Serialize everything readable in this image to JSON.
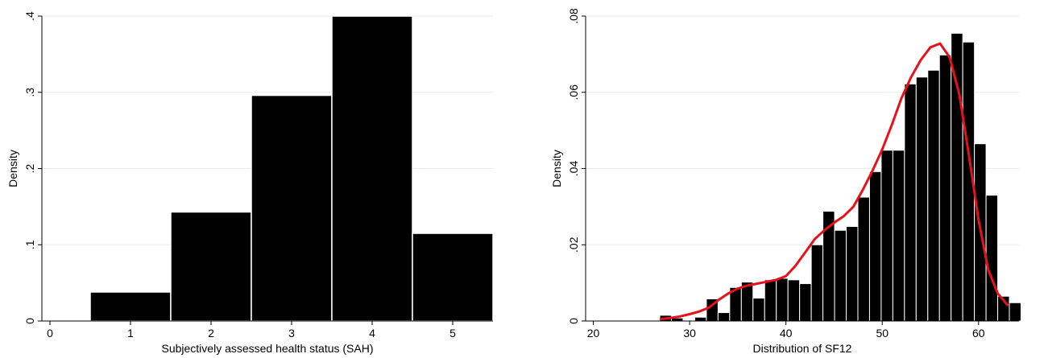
{
  "chart_data": [
    {
      "type": "bar",
      "xlabel": "Subjectively assessed health status (SAH)",
      "ylabel": "Density",
      "xlim": [
        -0.1,
        5.5
      ],
      "ylim": [
        0,
        0.4
      ],
      "x_ticks": [
        0,
        1,
        2,
        3,
        4,
        5
      ],
      "x_tick_labels": [
        "0",
        "1",
        "2",
        "3",
        "4",
        "5"
      ],
      "y_ticks": [
        0,
        0.1,
        0.2,
        0.3,
        0.4
      ],
      "y_tick_labels": [
        "0",
        ".1",
        ".2",
        ".3",
        ".4"
      ],
      "grid": true,
      "bar_color": "#000000",
      "bar_edge_color": "#ffffff",
      "bars": [
        {
          "from": 0.5,
          "to": 1.5,
          "value": 0.038
        },
        {
          "from": 1.5,
          "to": 2.5,
          "value": 0.143
        },
        {
          "from": 2.5,
          "to": 3.5,
          "value": 0.296
        },
        {
          "from": 3.5,
          "to": 4.5,
          "value": 0.4
        },
        {
          "from": 4.5,
          "to": 5.5,
          "value": 0.115
        }
      ]
    },
    {
      "type": "bar",
      "xlabel": "Distribution of SF12",
      "ylabel": "Density",
      "xlim": [
        19.2,
        64.2
      ],
      "ylim": [
        0,
        0.08
      ],
      "x_ticks": [
        20,
        30,
        40,
        50,
        60
      ],
      "x_tick_labels": [
        "20",
        "30",
        "40",
        "50",
        "60"
      ],
      "y_ticks": [
        0,
        0.02,
        0.04,
        0.06,
        0.08
      ],
      "y_tick_labels": [
        "0",
        ".02",
        ".04",
        ".06",
        ".08"
      ],
      "grid": true,
      "bar_color": "#000000",
      "bar_edge_color": "#ffffff",
      "bin_start": 26.9,
      "bin_width": 1.21,
      "values": [
        0.0015,
        0.0008,
        0.0,
        0.001,
        0.0058,
        0.0022,
        0.0088,
        0.0102,
        0.006,
        0.0108,
        0.0112,
        0.0108,
        0.0098,
        0.02,
        0.0288,
        0.0238,
        0.0248,
        0.0325,
        0.0392,
        0.0448,
        0.0448,
        0.0622,
        0.064,
        0.0658,
        0.0698,
        0.0755,
        0.0732,
        0.0465,
        0.033,
        0.0065,
        0.0048
      ],
      "series": [
        {
          "name": "",
          "type": "line",
          "color": "#e8111a",
          "x": [
            27,
            28,
            29,
            30,
            31,
            32,
            33,
            34,
            35,
            36,
            37,
            38,
            39,
            40,
            41,
            42,
            43,
            44,
            45,
            46,
            47,
            48,
            49,
            50,
            51,
            52,
            53,
            54,
            55,
            56,
            57,
            58,
            59,
            60,
            61,
            62,
            63
          ],
          "y": [
            0.0005,
            0.0008,
            0.0012,
            0.0018,
            0.0025,
            0.0035,
            0.0055,
            0.0072,
            0.0085,
            0.0093,
            0.0098,
            0.0103,
            0.0108,
            0.0118,
            0.0145,
            0.018,
            0.0215,
            0.0238,
            0.0258,
            0.0275,
            0.03,
            0.0345,
            0.0395,
            0.045,
            0.0515,
            0.0585,
            0.064,
            0.0685,
            0.0718,
            0.0728,
            0.0692,
            0.0595,
            0.0435,
            0.0265,
            0.0135,
            0.0072,
            0.0042
          ]
        }
      ]
    }
  ]
}
